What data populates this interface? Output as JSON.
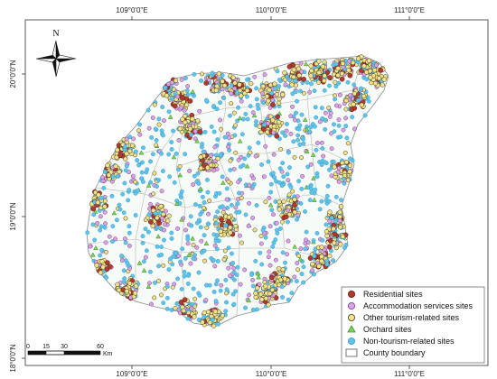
{
  "map": {
    "top_ticks": [
      "109°0'0\"E",
      "110°0'0\"E",
      "111°0'0\"E"
    ],
    "bottom_ticks": [
      "109°0'0\"E",
      "110°0'0\"E",
      "111°0'0\"E"
    ],
    "left_ticks": [
      "20°0'0\"N",
      "19°0'0\"N",
      "18°0'0\"N"
    ],
    "north_label": "N",
    "scale_labels": [
      "0",
      "15",
      "30",
      "60"
    ],
    "scale_unit": "Km"
  },
  "legend": {
    "items": [
      {
        "label": "Residential sites",
        "fill": "#b03a2e",
        "stroke": "#5a1a12",
        "shape": "circle"
      },
      {
        "label": "Accommodation services sites",
        "fill": "#d7a6e0",
        "stroke": "#7b3f8c",
        "shape": "circle"
      },
      {
        "label": "Other tourism-related sites",
        "fill": "#f3e28a",
        "stroke": "#3b3b1f",
        "shape": "circle"
      },
      {
        "label": "Orchard sites",
        "fill": "#7fd35b",
        "stroke": "#3f8a2a",
        "shape": "triangle"
      },
      {
        "label": "Non-tourism-related sites",
        "fill": "#5fc3ea",
        "stroke": "#3b9fc8",
        "shape": "circle"
      },
      {
        "label": "County boundary",
        "fill": "#ffffff",
        "stroke": "#555555",
        "shape": "rect"
      }
    ]
  }
}
